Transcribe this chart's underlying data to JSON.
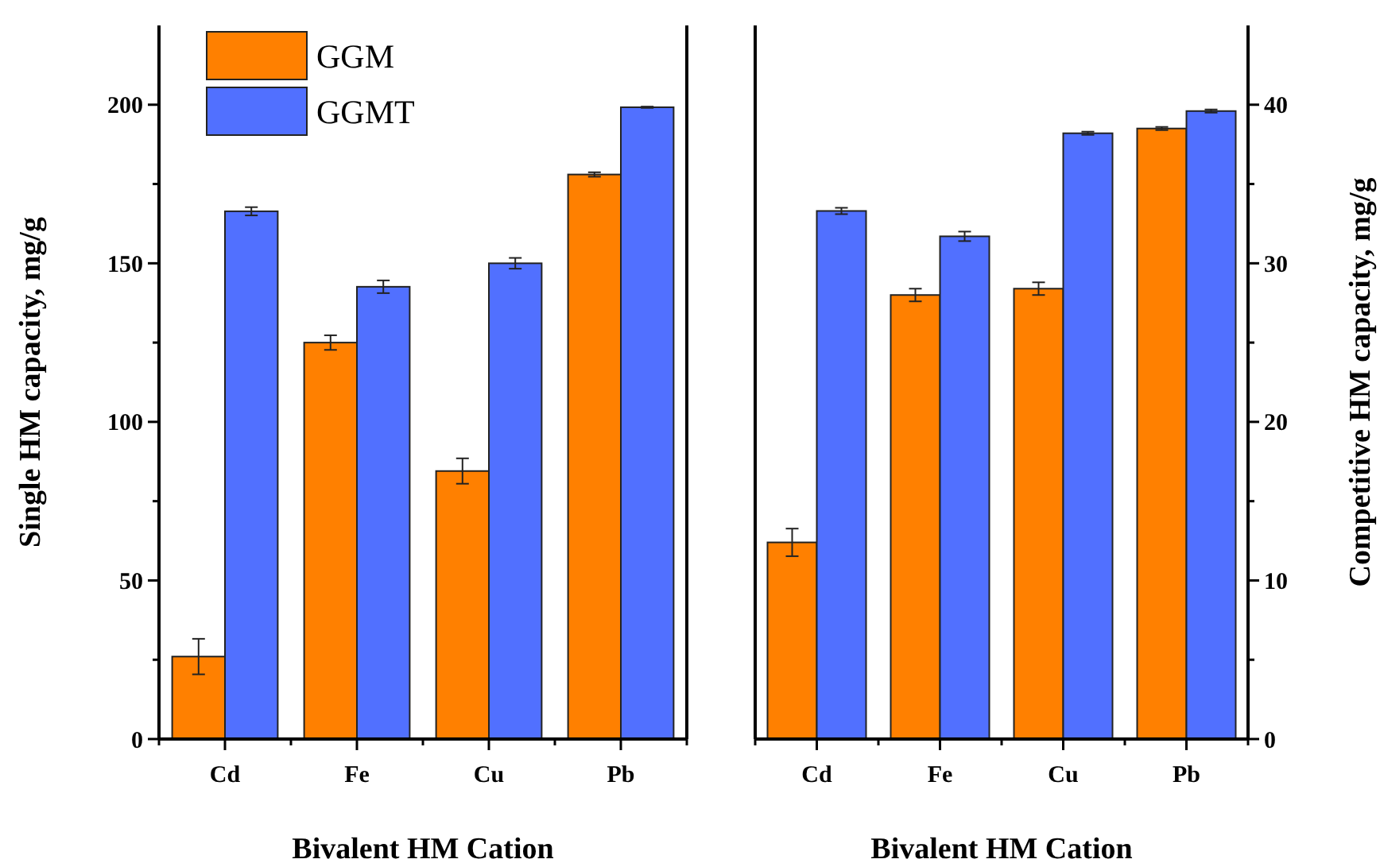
{
  "chart_data": [
    {
      "type": "bar",
      "xlabel": "Bivalent HM Cation",
      "ylabel": "Single HM capacity, mg/g",
      "categories": [
        "Cd",
        "Fe",
        "Cu",
        "Pb"
      ],
      "ylim": [
        0,
        225
      ],
      "yticks": [
        0,
        {
          "value": 25,
          "label": null
        },
        50,
        {
          "value": 75,
          "label": null
        },
        100,
        {
          "value": 125,
          "label": null
        },
        150,
        {
          "value": 175,
          "label": null
        },
        200
      ],
      "legend": "top left",
      "grid": false,
      "series": [
        {
          "name": "GGM",
          "color": "#ff8000",
          "values": [
            26,
            125,
            84.5,
            178
          ],
          "errors": [
            5.6,
            2.3,
            4,
            0.7
          ]
        },
        {
          "name": "GGMT",
          "color": "#5170ff",
          "values": [
            166.4,
            142.6,
            150,
            199.2
          ],
          "errors": [
            1.3,
            2,
            1.7,
            0.2
          ]
        }
      ]
    },
    {
      "type": "bar",
      "xlabel": "Bivalent HM Cation",
      "ylabel": "Competitive HM capacity, mg/g",
      "categories": [
        "Cd",
        "Fe",
        "Cu",
        "Pb"
      ],
      "ylim": [
        0,
        45
      ],
      "yticks": [
        0,
        {
          "value": 5,
          "label": null
        },
        10,
        {
          "value": 15,
          "label": null
        },
        20,
        {
          "value": 25,
          "label": null
        },
        30,
        {
          "value": 35,
          "label": null
        },
        40
      ],
      "legend": false,
      "grid": false,
      "series": [
        {
          "color": "#ff8000",
          "values": [
            12.4,
            28,
            28.4,
            38.5
          ],
          "errors": [
            0.87,
            0.4,
            0.4,
            0.1
          ]
        },
        {
          "color": "#5170ff",
          "values": [
            33.3,
            31.7,
            38.2,
            39.6
          ],
          "errors": [
            0.2,
            0.3,
            0.1,
            0.1
          ]
        }
      ]
    }
  ]
}
